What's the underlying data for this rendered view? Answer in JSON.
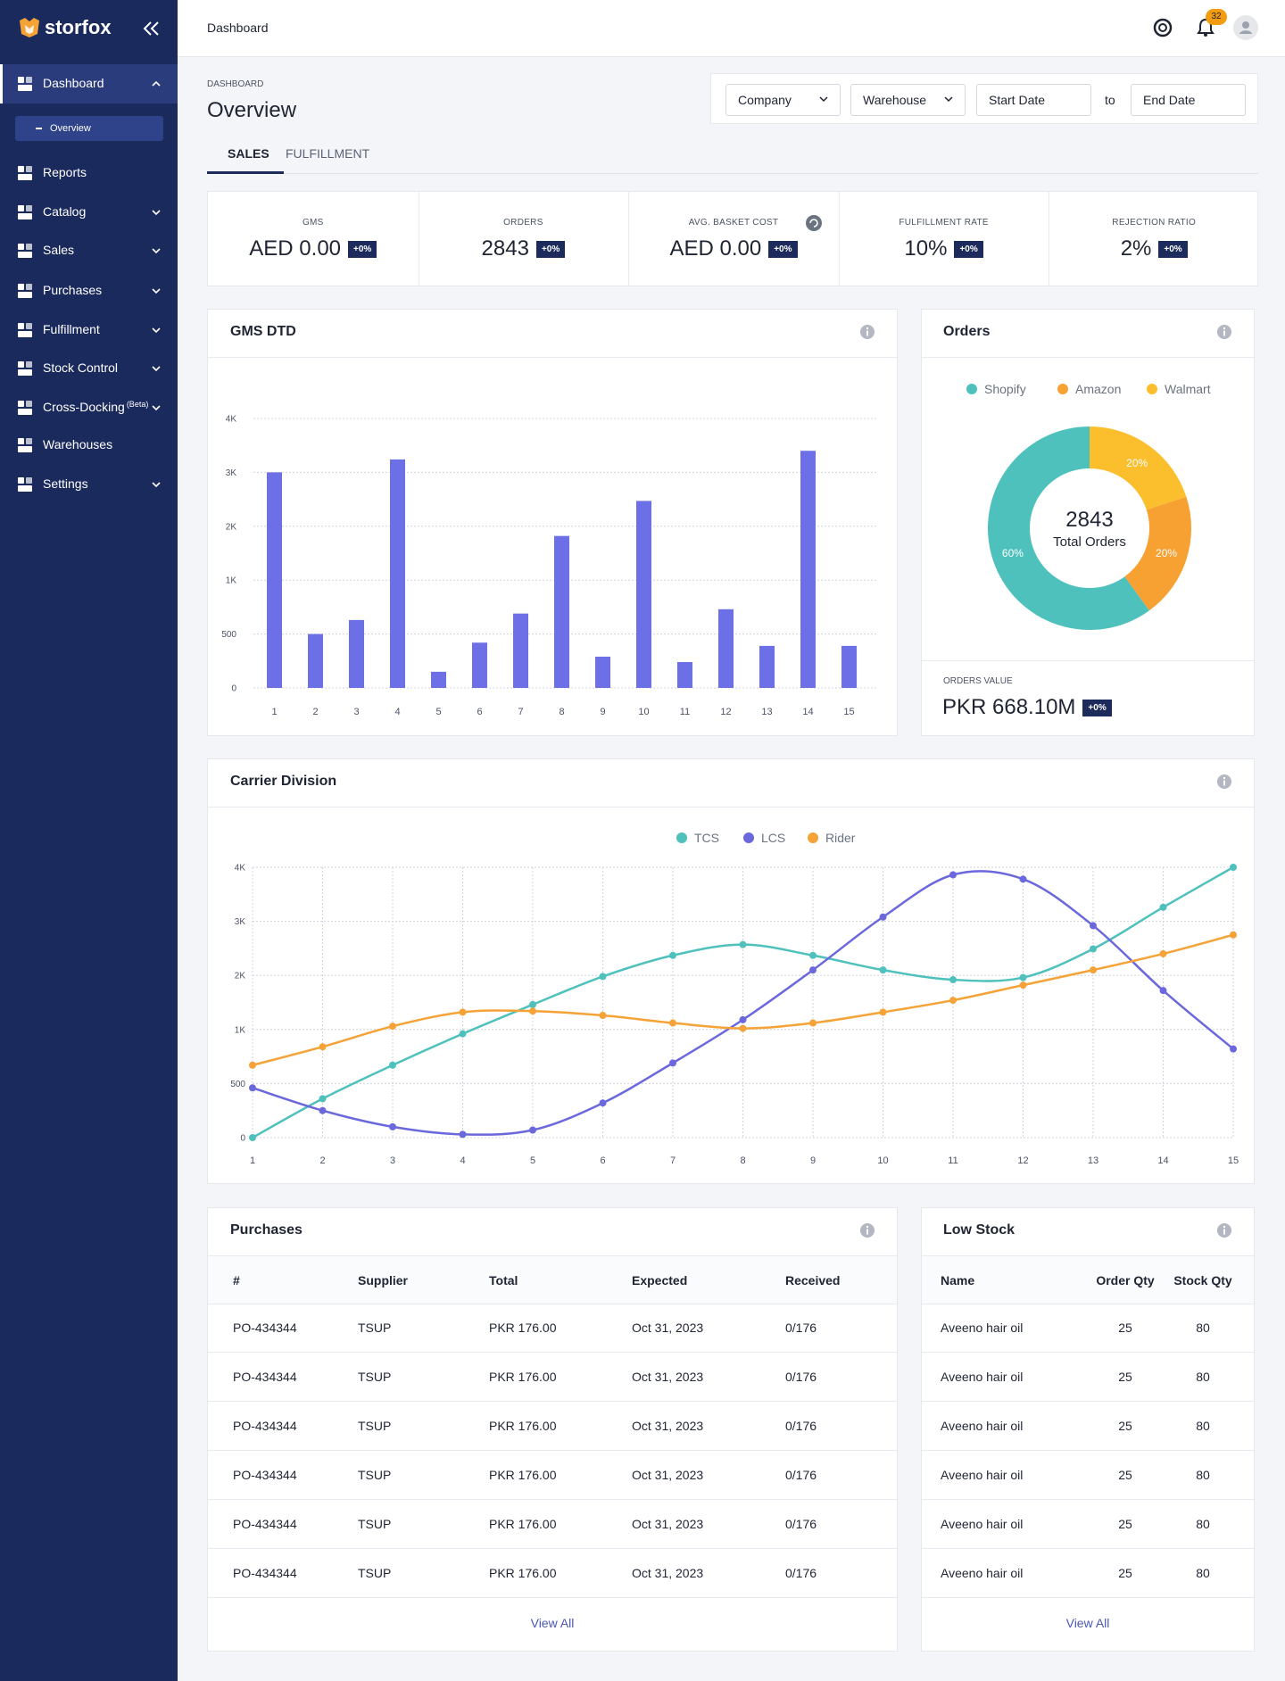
{
  "sidebar": {
    "brand": "storfox",
    "nav": [
      "Dashboard",
      "Reports",
      "Catalog",
      "Sales",
      "Purchases",
      "Fulfillment",
      "Stock Control",
      "Cross-Docking",
      "Warehouses",
      "Settings"
    ],
    "beta": "(Beta)",
    "sub_item": "Overview"
  },
  "header": {
    "title": "Dashboard",
    "notifications": "32"
  },
  "page": {
    "eyebrow": "DASHBOARD",
    "title": "Overview",
    "tabs": [
      "SALES",
      "FULFILLMENT"
    ]
  },
  "filters": {
    "company": "Company",
    "warehouse": "Warehouse",
    "start": "Start Date",
    "to": "to",
    "end": "End Date"
  },
  "kpis": [
    {
      "label": "GMS",
      "value": "AED 0.00",
      "change": "+0%"
    },
    {
      "label": "ORDERS",
      "value": "2843",
      "change": "+0%"
    },
    {
      "label": "AVG. BASKET COST",
      "value": "AED 0.00",
      "change": "+0%"
    },
    {
      "label": "FULFILLMENT RATE",
      "value": "10%",
      "change": "+0%"
    },
    {
      "label": "REJECTION RATIO",
      "value": "2%",
      "change": "+0%"
    }
  ],
  "chart_data": [
    {
      "type": "bar",
      "title": "GMS DTD",
      "categories": [
        "1",
        "2",
        "3",
        "4",
        "5",
        "6",
        "7",
        "8",
        "9",
        "10",
        "11",
        "12",
        "13",
        "14",
        "15"
      ],
      "values": [
        3000,
        500,
        630,
        3240,
        150,
        420,
        690,
        1820,
        290,
        2470,
        240,
        730,
        390,
        3400,
        390
      ],
      "color": "#6c6fe6",
      "ylim": [
        0,
        4000
      ],
      "yticks": [
        0,
        500,
        {
          "value": 1000,
          "label": "1K"
        },
        {
          "value": 2000,
          "label": "2K"
        },
        {
          "value": 3000,
          "label": "3K"
        },
        {
          "value": 4000,
          "label": "4K"
        }
      ],
      "grid": true
    },
    {
      "type": "pie",
      "title": "Orders",
      "categories": [
        "Shopify",
        "Amazon",
        "Walmart"
      ],
      "values": [
        60,
        20,
        20
      ],
      "value_labels": [
        "60%",
        "20%",
        "20%"
      ],
      "colors": [
        "#4fc1bd",
        "#f7a133",
        "#fbbf2e"
      ],
      "center_value": "2843",
      "center_label": "Total Orders"
    },
    {
      "type": "line",
      "title": "Carrier Division",
      "categories": [
        "1",
        "2",
        "3",
        "4",
        "5",
        "6",
        "7",
        "8",
        "9",
        "10",
        "11",
        "12",
        "13",
        "14",
        "15"
      ],
      "series": [
        {
          "name": "TCS",
          "color": "#4fc1bd",
          "values": [
            0,
            360,
            670,
            960,
            1460,
            1980,
            2370,
            2570,
            2370,
            2100,
            1920,
            1960,
            2490,
            3260,
            4000
          ]
        },
        {
          "name": "LCS",
          "color": "#6a68dc",
          "values": [
            460,
            250,
            100,
            30,
            70,
            320,
            690,
            1180,
            2100,
            3080,
            3860,
            3780,
            2920,
            1720,
            820
          ]
        },
        {
          "name": "Rider",
          "color": "#f5a236",
          "values": [
            670,
            840,
            1060,
            1320,
            1340,
            1260,
            1120,
            1020,
            1120,
            1320,
            1540,
            1820,
            2100,
            2400,
            2750
          ]
        }
      ],
      "ylim": [
        0,
        4000
      ],
      "yticks": [
        0,
        500,
        {
          "value": 1000,
          "label": "1K"
        },
        {
          "value": 2000,
          "label": "2K"
        },
        {
          "value": 3000,
          "label": "3K"
        },
        {
          "value": 4000,
          "label": "4K"
        }
      ],
      "grid": true
    }
  ],
  "orders_value": {
    "label": "ORDERS VALUE",
    "value": "PKR 668.10M",
    "change": "+0%"
  },
  "purchases": {
    "title": "Purchases",
    "columns": [
      "#",
      "Supplier",
      "Total",
      "Expected",
      "Received"
    ],
    "rows": [
      [
        "PO-434344",
        "TSUP",
        "PKR 176.00",
        "Oct 31, 2023",
        "0/176"
      ],
      [
        "PO-434344",
        "TSUP",
        "PKR 176.00",
        "Oct 31, 2023",
        "0/176"
      ],
      [
        "PO-434344",
        "TSUP",
        "PKR 176.00",
        "Oct 31, 2023",
        "0/176"
      ],
      [
        "PO-434344",
        "TSUP",
        "PKR 176.00",
        "Oct 31, 2023",
        "0/176"
      ],
      [
        "PO-434344",
        "TSUP",
        "PKR 176.00",
        "Oct 31, 2023",
        "0/176"
      ],
      [
        "PO-434344",
        "TSUP",
        "PKR 176.00",
        "Oct 31, 2023",
        "0/176"
      ]
    ],
    "link": "View All"
  },
  "low_stock": {
    "title": "Low Stock",
    "columns": [
      "Name",
      "Order Qty",
      "Stock Qty"
    ],
    "rows": [
      [
        "Aveeno hair oil",
        25,
        80
      ],
      [
        "Aveeno hair oil",
        25,
        80
      ],
      [
        "Aveeno hair oil",
        25,
        80
      ],
      [
        "Aveeno hair oil",
        25,
        80
      ],
      [
        "Aveeno hair oil",
        25,
        80
      ],
      [
        "Aveeno hair oil",
        25,
        80
      ]
    ],
    "link": "View All"
  }
}
